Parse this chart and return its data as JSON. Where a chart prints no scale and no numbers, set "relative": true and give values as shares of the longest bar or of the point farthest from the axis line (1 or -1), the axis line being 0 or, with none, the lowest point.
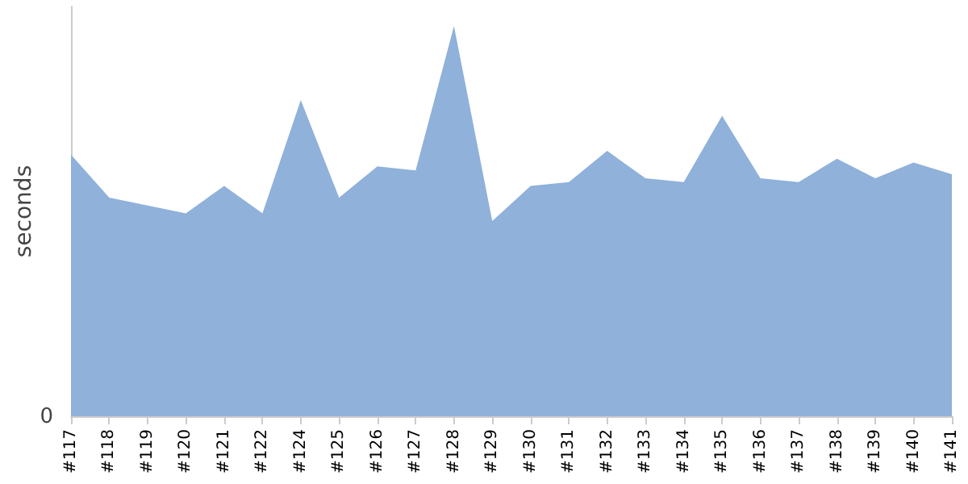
{
  "chart_data": {
    "type": "area",
    "relative": true,
    "ylabel": "seconds",
    "annotations": [
      "0"
    ],
    "color": "#8fb1da",
    "categories": [
      "#117",
      "#118",
      "#119",
      "#120",
      "#121",
      "#122",
      "#124",
      "#125",
      "#126",
      "#127",
      "#128",
      "#129",
      "#130",
      "#131",
      "#132",
      "#133",
      "#134",
      "#135",
      "#136",
      "#137",
      "#138",
      "#139",
      "#140",
      "#141"
    ],
    "values": [
      0.67,
      0.56,
      0.54,
      0.52,
      0.59,
      0.52,
      0.81,
      0.56,
      0.64,
      0.63,
      1,
      0.5,
      0.59,
      0.6,
      0.68,
      0.61,
      0.6,
      0.77,
      0.61,
      0.6,
      0.66,
      0.61,
      0.65,
      0.62
    ],
    "grid": false
  }
}
